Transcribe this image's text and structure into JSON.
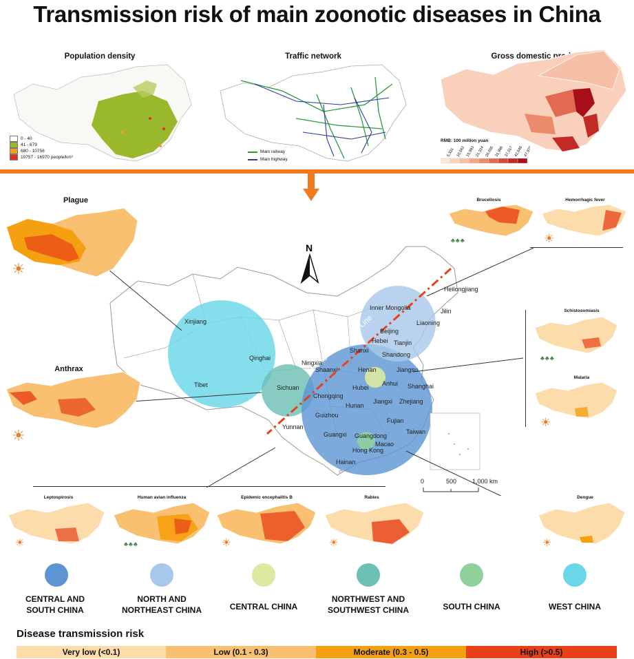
{
  "title": "Transmission risk of main zoonotic diseases in China",
  "top_panels": {
    "population": {
      "title": "Population density",
      "legend": [
        {
          "label": "0 - 40",
          "color": "#ffffff"
        },
        {
          "label": "41 - 679",
          "color": "#9ab82c"
        },
        {
          "label": "680 - 10756",
          "color": "#f0a020"
        },
        {
          "label": "10757 - 16970  people/km²",
          "color": "#e03020"
        }
      ]
    },
    "traffic": {
      "title": "Traffic network",
      "legend": [
        {
          "label": "Main railway",
          "color": "#2a9a3a"
        },
        {
          "label": "Main highway",
          "color": "#2a3aa0"
        }
      ]
    },
    "gdp": {
      "title": "Gross domestic product",
      "unit": "RMB: 100 million yuan",
      "ticks": [
        "5,331",
        "10,662",
        "15,993",
        "21,324",
        "26,655",
        "31,986",
        "37,317",
        "42,648",
        "47,979"
      ],
      "colors": [
        "#fde8dc",
        "#fbd4c0",
        "#f8bfa4",
        "#f3a688",
        "#ec8a6c",
        "#e26a52",
        "#d44a3a",
        "#c22a26",
        "#a80f18"
      ]
    }
  },
  "diseases": {
    "plague": "Plague",
    "anthrax": "Anthrax",
    "brucellosis": "Brucellosis",
    "hemorrhagic": "Hemorrhagic fever",
    "schistosomiasis": "Schistosomiasis",
    "malaria": "Malaria",
    "leptospirosis": "Leptospirosis",
    "avian": "Human avian influenza",
    "encephalitis": "Epidemic encephalitis B",
    "rabies": "Rabies",
    "dengue": "Dengue"
  },
  "compass": "N",
  "hu_line": "Heihe - Tengchong Line",
  "scale": {
    "labels": [
      "0",
      "500",
      "1,000 km"
    ]
  },
  "provinces": [
    {
      "name": "Heilongjiang"
    },
    {
      "name": "Jilin"
    },
    {
      "name": "Inner Mongolia"
    },
    {
      "name": "Liaoning"
    },
    {
      "name": "Beijing"
    },
    {
      "name": "Tianjin"
    },
    {
      "name": "Hebei"
    },
    {
      "name": "Shanxi"
    },
    {
      "name": "Shandong"
    },
    {
      "name": "Xinjiang"
    },
    {
      "name": "Qinghai"
    },
    {
      "name": "Tibet"
    },
    {
      "name": "Ningxia"
    },
    {
      "name": "Shaanxi"
    },
    {
      "name": "Henan"
    },
    {
      "name": "Jiangsu"
    },
    {
      "name": "Anhui"
    },
    {
      "name": "Shanghai"
    },
    {
      "name": "Sichuan"
    },
    {
      "name": "Chongqing"
    },
    {
      "name": "Hubei"
    },
    {
      "name": "Zhejiang"
    },
    {
      "name": "Hunan"
    },
    {
      "name": "Jiangxi"
    },
    {
      "name": "Guizhou"
    },
    {
      "name": "Fujian"
    },
    {
      "name": "Yunnan"
    },
    {
      "name": "Guangxi"
    },
    {
      "name": "Guangdong"
    },
    {
      "name": "Taiwan"
    },
    {
      "name": "Macao"
    },
    {
      "name": "Hong Kong"
    },
    {
      "name": "Hainan"
    }
  ],
  "regions": [
    {
      "label1": "CENTRAL AND",
      "label2": "SOUTH CHINA",
      "color": "#5b95d3"
    },
    {
      "label1": "NORTH AND",
      "label2": "NORTHEAST CHINA",
      "color": "#a7c8ea"
    },
    {
      "label1": "CENTRAL CHINA",
      "label2": "",
      "color": "#dde8a0"
    },
    {
      "label1": "NORTHWEST AND",
      "label2": "SOUTHWEST CHINA",
      "color": "#6cc0b4"
    },
    {
      "label1": "SOUTH CHINA",
      "label2": "",
      "color": "#8fd09c"
    },
    {
      "label1": "WEST CHINA",
      "label2": "",
      "color": "#6ad7e8"
    }
  ],
  "risk": {
    "title": "Disease transmission risk",
    "levels": [
      {
        "label": "Very low (<0.1)",
        "color": "#fbdcaa"
      },
      {
        "label": "Low (0.1 - 0.3)",
        "color": "#f8c070"
      },
      {
        "label": "Moderate (0.3 - 0.5)",
        "color": "#f5a010"
      },
      {
        "label": "High (>0.5)",
        "color": "#e84018"
      }
    ]
  }
}
